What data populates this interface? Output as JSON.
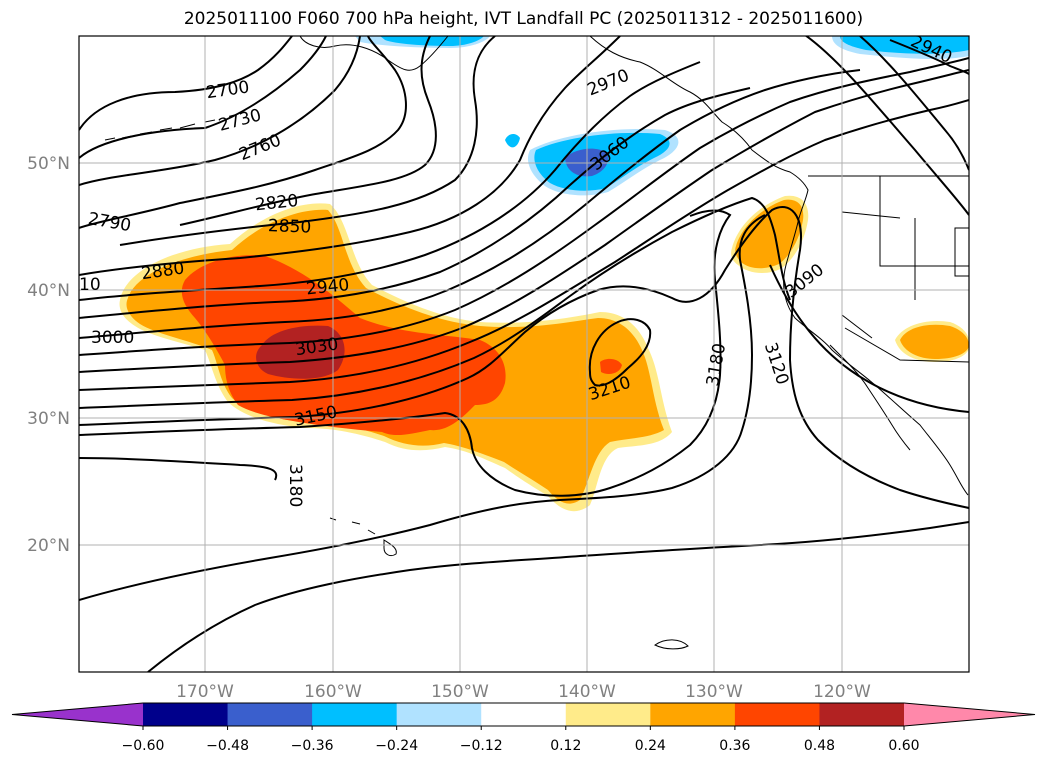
{
  "title": "2025011100 F060 700 hPa height, IVT Landfall PC (2025011312 - 2025011600)",
  "map": {
    "lon_ticks": [
      "170°W",
      "160°W",
      "150°W",
      "140°W",
      "130°W",
      "120°W"
    ],
    "lat_ticks": [
      "50°N",
      "40°N",
      "30°N",
      "20°N"
    ],
    "contour_labels": [
      "2700",
      "2730",
      "2760",
      "2790",
      "2820",
      "2850",
      "2880",
      "2940",
      "2970",
      "3000",
      "3030",
      "3060",
      "3090",
      "3120",
      "3150",
      "3180",
      "3180",
      "3210",
      "2940",
      "10"
    ]
  },
  "colorbar": {
    "ticks": [
      "−0.60",
      "−0.48",
      "−0.36",
      "−0.24",
      "−0.12",
      "0.12",
      "0.24",
      "0.36",
      "0.48",
      "0.60"
    ],
    "colors": [
      "#9932cc",
      "#00008b",
      "#3a5fcd",
      "#00bfff",
      "#b0e2ff",
      "#ffffff",
      "#ffeb8a",
      "#ffa500",
      "#ff4500",
      "#b22222",
      "#ff88aa"
    ]
  }
}
